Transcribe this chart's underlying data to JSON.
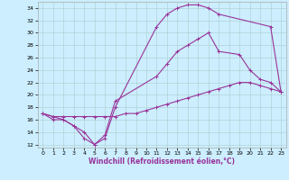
{
  "xlabel": "Windchill (Refroidissement éolien,°C)",
  "xlim": [
    -0.5,
    23.5
  ],
  "ylim": [
    11.5,
    35.0
  ],
  "xticks": [
    0,
    1,
    2,
    3,
    4,
    5,
    6,
    7,
    8,
    9,
    10,
    11,
    12,
    13,
    14,
    15,
    16,
    17,
    18,
    19,
    20,
    21,
    22,
    23
  ],
  "yticks": [
    12,
    14,
    16,
    18,
    20,
    22,
    24,
    26,
    28,
    30,
    32,
    34
  ],
  "background_color": "#cceeff",
  "grid_color": "#aacccc",
  "line_color": "#993399",
  "line1_x": [
    0,
    1,
    2,
    3,
    4,
    5,
    6,
    7,
    11,
    12,
    13,
    14,
    15,
    16,
    17,
    22,
    23
  ],
  "line1_y": [
    17,
    16,
    16,
    15,
    13,
    12,
    13,
    18,
    31,
    33,
    34,
    34.5,
    34.5,
    34,
    33,
    31,
    20.5
  ],
  "line2_x": [
    0,
    1,
    2,
    3,
    4,
    5,
    6,
    7,
    11,
    12,
    13,
    14,
    15,
    16,
    17,
    19,
    20,
    21,
    22,
    23
  ],
  "line2_y": [
    17,
    16.5,
    16,
    15,
    14,
    12,
    13.5,
    19,
    23,
    25,
    27,
    28,
    29,
    30,
    27,
    26.5,
    24,
    22.5,
    22,
    20.5
  ],
  "line3_x": [
    0,
    1,
    2,
    3,
    4,
    5,
    6,
    7,
    8,
    9,
    10,
    11,
    12,
    13,
    14,
    15,
    16,
    17,
    18,
    19,
    20,
    21,
    22,
    23
  ],
  "line3_y": [
    17,
    16.5,
    16.5,
    16.5,
    16.5,
    16.5,
    16.5,
    16.5,
    17,
    17,
    17.5,
    18,
    18.5,
    19,
    19.5,
    20,
    20.5,
    21,
    21.5,
    22,
    22,
    21.5,
    21,
    20.5
  ],
  "marker": "+",
  "markersize": 3,
  "linewidth": 0.8
}
